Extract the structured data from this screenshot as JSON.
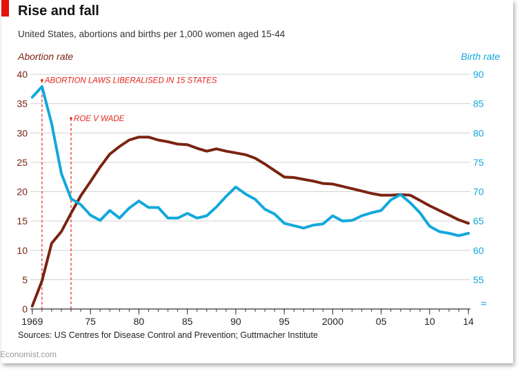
{
  "title": "Rise and fall",
  "subtitle": "United States, abortions and births per 1,000 women aged 15-44",
  "source": "Sources: US Centres for Disease Control and Prevention; Guttmacher Institute",
  "brand": "Economist.com",
  "colors": {
    "abortion": "#7b2312",
    "birth": "#12a8dc",
    "annotation": "#e3241b",
    "accent": "#e3120b",
    "grid": "#d0d0d0"
  },
  "chart_data": {
    "type": "line",
    "title": "Rise and fall",
    "subtitle": "United States, abortions and births per 1,000 women aged 15-44",
    "xlim": [
      1968.8,
      2014.2
    ],
    "x_ticks": [
      {
        "value": 1969,
        "label": "1969"
      },
      {
        "value": 1975,
        "label": "75"
      },
      {
        "value": 1980,
        "label": "80"
      },
      {
        "value": 1985,
        "label": "85"
      },
      {
        "value": 1990,
        "label": "90"
      },
      {
        "value": 1995,
        "label": "95"
      },
      {
        "value": 2000,
        "label": "2000"
      },
      {
        "value": 2005,
        "label": "05"
      },
      {
        "value": 2010,
        "label": "10"
      },
      {
        "value": 2014,
        "label": "14"
      }
    ],
    "y_left": {
      "label": "Abortion rate",
      "lim": [
        0,
        40
      ],
      "ticks": [
        "0",
        "5",
        "10",
        "15",
        "20",
        "25",
        "30",
        "35",
        "40"
      ]
    },
    "y_right": {
      "label": "Birth rate",
      "lim": [
        50,
        90
      ],
      "ticks": [
        "55",
        "60",
        "65",
        "70",
        "75",
        "80",
        "85",
        "90"
      ],
      "break_marker": "≈"
    },
    "grid": true,
    "annotations": [
      {
        "x": 1970,
        "y": 39,
        "text": "ABORTION LAWS LIBERALISED IN 15 STATES"
      },
      {
        "x": 1973,
        "y": 32.5,
        "text": "ROE V WADE"
      }
    ],
    "series": [
      {
        "name": "Abortion rate",
        "axis": "left",
        "x": [
          1969,
          1970,
          1971,
          1972,
          1973,
          1974,
          1975,
          1976,
          1977,
          1978,
          1979,
          1980,
          1981,
          1982,
          1983,
          1984,
          1985,
          1986,
          1987,
          1988,
          1989,
          1990,
          1991,
          1992,
          1993,
          1994,
          1995,
          1996,
          1997,
          1998,
          1999,
          2000,
          2001,
          2002,
          2003,
          2004,
          2005,
          2006,
          2007,
          2008,
          2009,
          2010,
          2011,
          2012,
          2013,
          2014
        ],
        "values": [
          0.5,
          4.8,
          11.2,
          13.2,
          16.3,
          19.3,
          21.7,
          24.2,
          26.4,
          27.7,
          28.8,
          29.3,
          29.3,
          28.8,
          28.5,
          28.1,
          28.0,
          27.4,
          26.9,
          27.3,
          26.9,
          26.6,
          26.3,
          25.7,
          24.7,
          23.6,
          22.5,
          22.4,
          22.1,
          21.8,
          21.4,
          21.3,
          20.9,
          20.5,
          20.1,
          19.7,
          19.4,
          19.4,
          19.5,
          19.4,
          18.5,
          17.6,
          16.8,
          16.0,
          15.2,
          14.6
        ]
      },
      {
        "name": "Birth rate",
        "axis": "right",
        "x": [
          1969,
          1970,
          1971,
          1972,
          1973,
          1974,
          1975,
          1976,
          1977,
          1978,
          1979,
          1980,
          1981,
          1982,
          1983,
          1984,
          1985,
          1986,
          1987,
          1988,
          1989,
          1990,
          1991,
          1992,
          1993,
          1994,
          1995,
          1996,
          1997,
          1998,
          1999,
          2000,
          2001,
          2002,
          2003,
          2004,
          2005,
          2006,
          2007,
          2008,
          2009,
          2010,
          2011,
          2012,
          2013,
          2014
        ],
        "values": [
          86.1,
          87.9,
          81.6,
          73.1,
          68.8,
          67.8,
          66.0,
          65.1,
          66.8,
          65.5,
          67.2,
          68.4,
          67.3,
          67.3,
          65.5,
          65.5,
          66.3,
          65.5,
          65.9,
          67.4,
          69.2,
          70.8,
          69.6,
          68.7,
          67.0,
          66.2,
          64.6,
          64.2,
          63.8,
          64.3,
          64.5,
          65.9,
          65.0,
          65.1,
          65.9,
          66.4,
          66.8,
          68.6,
          69.5,
          68.1,
          66.4,
          64.1,
          63.2,
          62.9,
          62.5,
          62.9
        ]
      }
    ]
  }
}
